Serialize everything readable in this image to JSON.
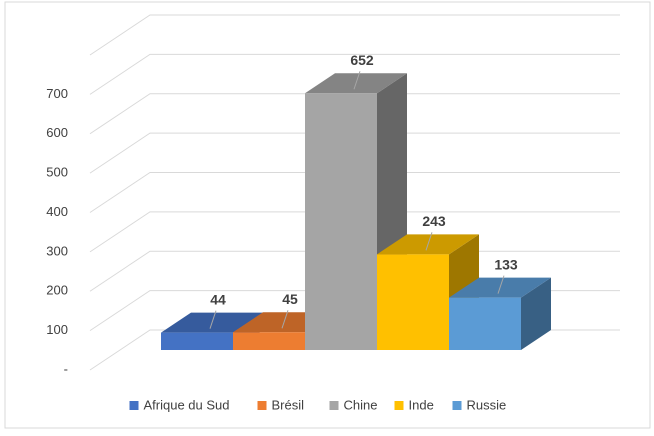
{
  "chart_data": {
    "type": "bar3d",
    "categories": [
      "Afrique du Sud",
      "Brésil",
      "Chine",
      "Inde",
      "Russie"
    ],
    "values": [
      44,
      45,
      652,
      243,
      133
    ],
    "colors": [
      "#4472c4",
      "#ed7d31",
      "#a5a5a5",
      "#ffc000",
      "#5b9bd5"
    ],
    "ylim": [
      0,
      800
    ],
    "yticks": [
      {
        "value": 0,
        "label": "-"
      },
      100,
      200,
      300,
      400,
      500,
      600,
      700
    ],
    "grid": true,
    "legend": "bottom"
  }
}
